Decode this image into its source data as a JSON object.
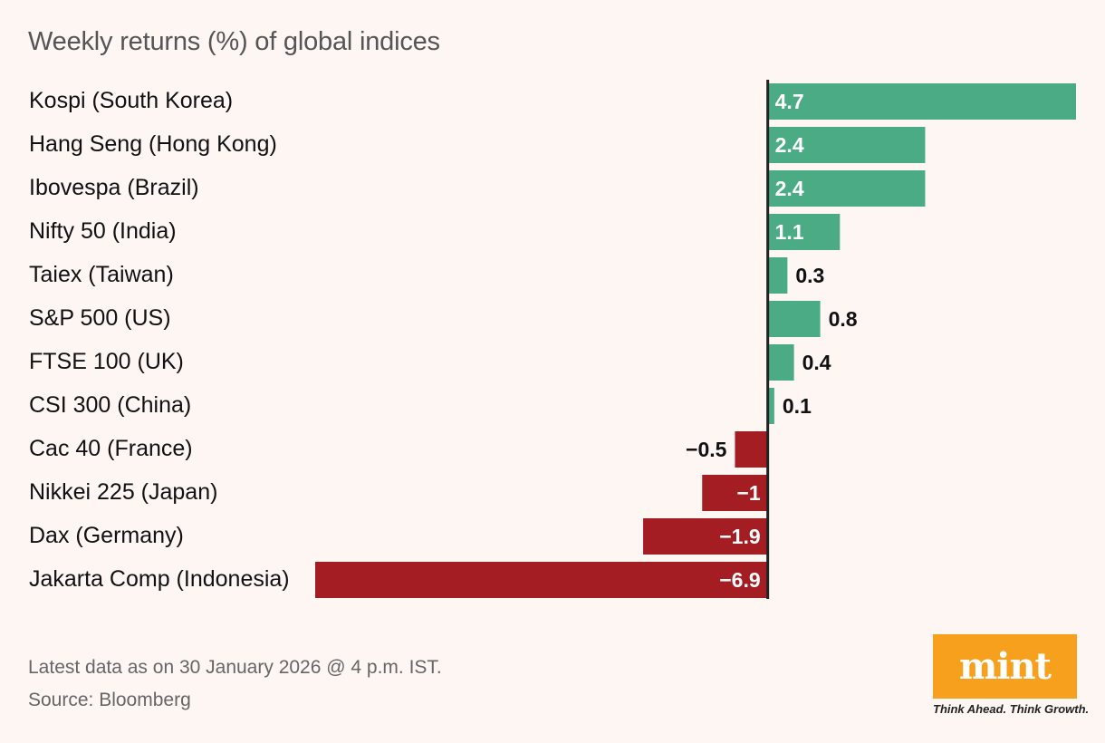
{
  "chart_data": {
    "type": "bar",
    "orientation": "horizontal",
    "title": "Weekly returns (%) of global indices",
    "categories": [
      "Kospi (South Korea)",
      "Hang Seng (Hong Kong)",
      "Ibovespa (Brazil)",
      "Nifty 50 (India)",
      "Taiex (Taiwan)",
      "S&P 500 (US)",
      "FTSE 100 (UK)",
      "CSI 300 (China)",
      "Cac 40 (France)",
      "Nikkei 225 (Japan)",
      "Dax (Germany)",
      "Jakarta Comp (Indonesia)"
    ],
    "values": [
      4.7,
      2.4,
      2.4,
      1.1,
      0.3,
      0.8,
      0.4,
      0.1,
      -0.5,
      -1,
      -1.9,
      -6.9
    ],
    "value_labels": [
      "4.7",
      "2.4",
      "2.4",
      "1.1",
      "0.3",
      "0.8",
      "0.4",
      "0.1",
      "−0.5",
      "−1",
      "−1.9",
      "−6.9"
    ],
    "xlim": [
      -6.9,
      4.7
    ],
    "positive_color": "#4bab84",
    "negative_color": "#a31d23"
  },
  "footer": {
    "note": "Latest data as on 30 January 2026 @ 4 p.m. IST.",
    "source": "Source: Bloomberg"
  },
  "brand": {
    "logo_text": "mint",
    "tagline": "Think Ahead. Think Growth.",
    "color": "#f6a01d"
  }
}
